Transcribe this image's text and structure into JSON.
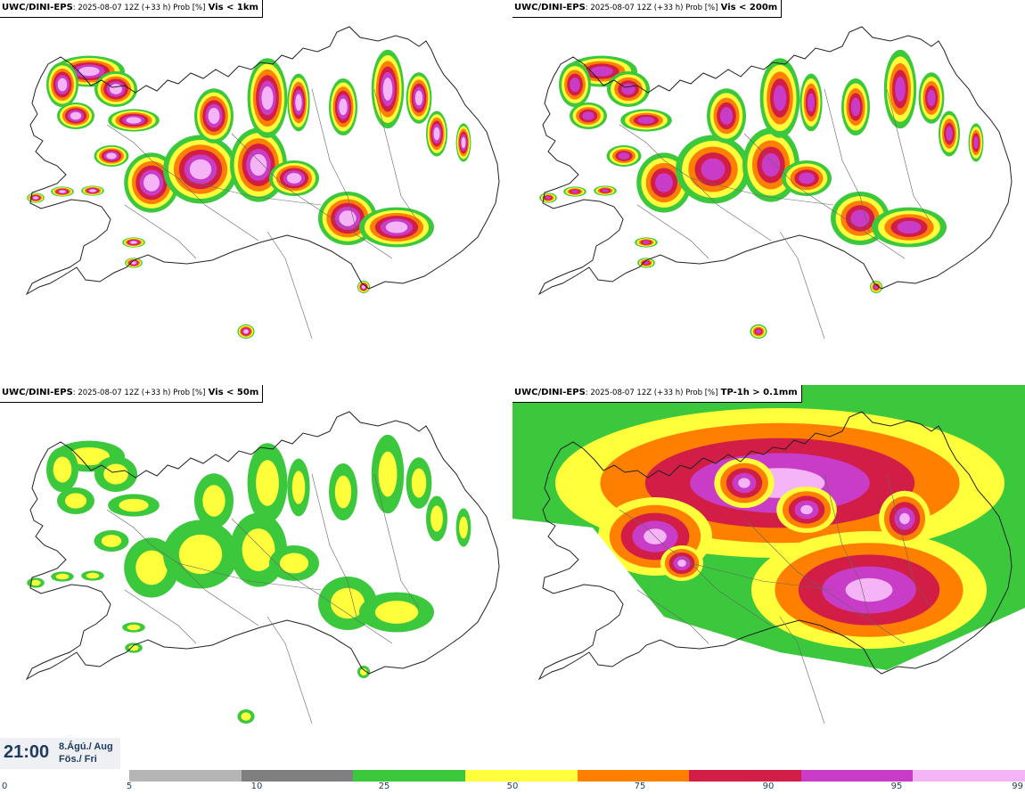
{
  "panels": [
    {
      "model": "UWC/DINI-EPS",
      "meta": ": 2025-08-07 12Z (+33 h) Prob [%]",
      "variable": "Vis < 1km"
    },
    {
      "model": "UWC/DINI-EPS",
      "meta": ": 2025-08-07 12Z (+33 h) Prob [%]",
      "variable": "Vis < 200m"
    },
    {
      "model": "UWC/DINI-EPS",
      "meta": ": 2025-08-07 12Z (+33 h) Prob [%]",
      "variable": "Vis < 50m"
    },
    {
      "model": "UWC/DINI-EPS",
      "meta": ": 2025-08-07 12Z (+33 h) Prob [%]",
      "variable": "TP-1h > 0.1mm"
    }
  ],
  "time": {
    "clock": "21:00",
    "date_line1": "8.Ágú./ Aug",
    "date_line2": "Fös./ Fri"
  },
  "legend": {
    "ticks": [
      "0",
      "5",
      "10",
      "25",
      "50",
      "75",
      "90",
      "95",
      "99"
    ],
    "colors": [
      "#b5b5b5",
      "#7f7f7f",
      "#3cc83c",
      "#ffff3c",
      "#ff7f00",
      "#d21e46",
      "#c83cc8",
      "#f5b4f5"
    ]
  },
  "colors": {
    "gray_light": "#b5b5b5",
    "gray_dark": "#7f7f7f",
    "green": "#3cc83c",
    "yellow": "#ffff3c",
    "orange": "#ff7f00",
    "red": "#d21e46",
    "magenta": "#c83cc8",
    "pink": "#f5b4f5"
  }
}
